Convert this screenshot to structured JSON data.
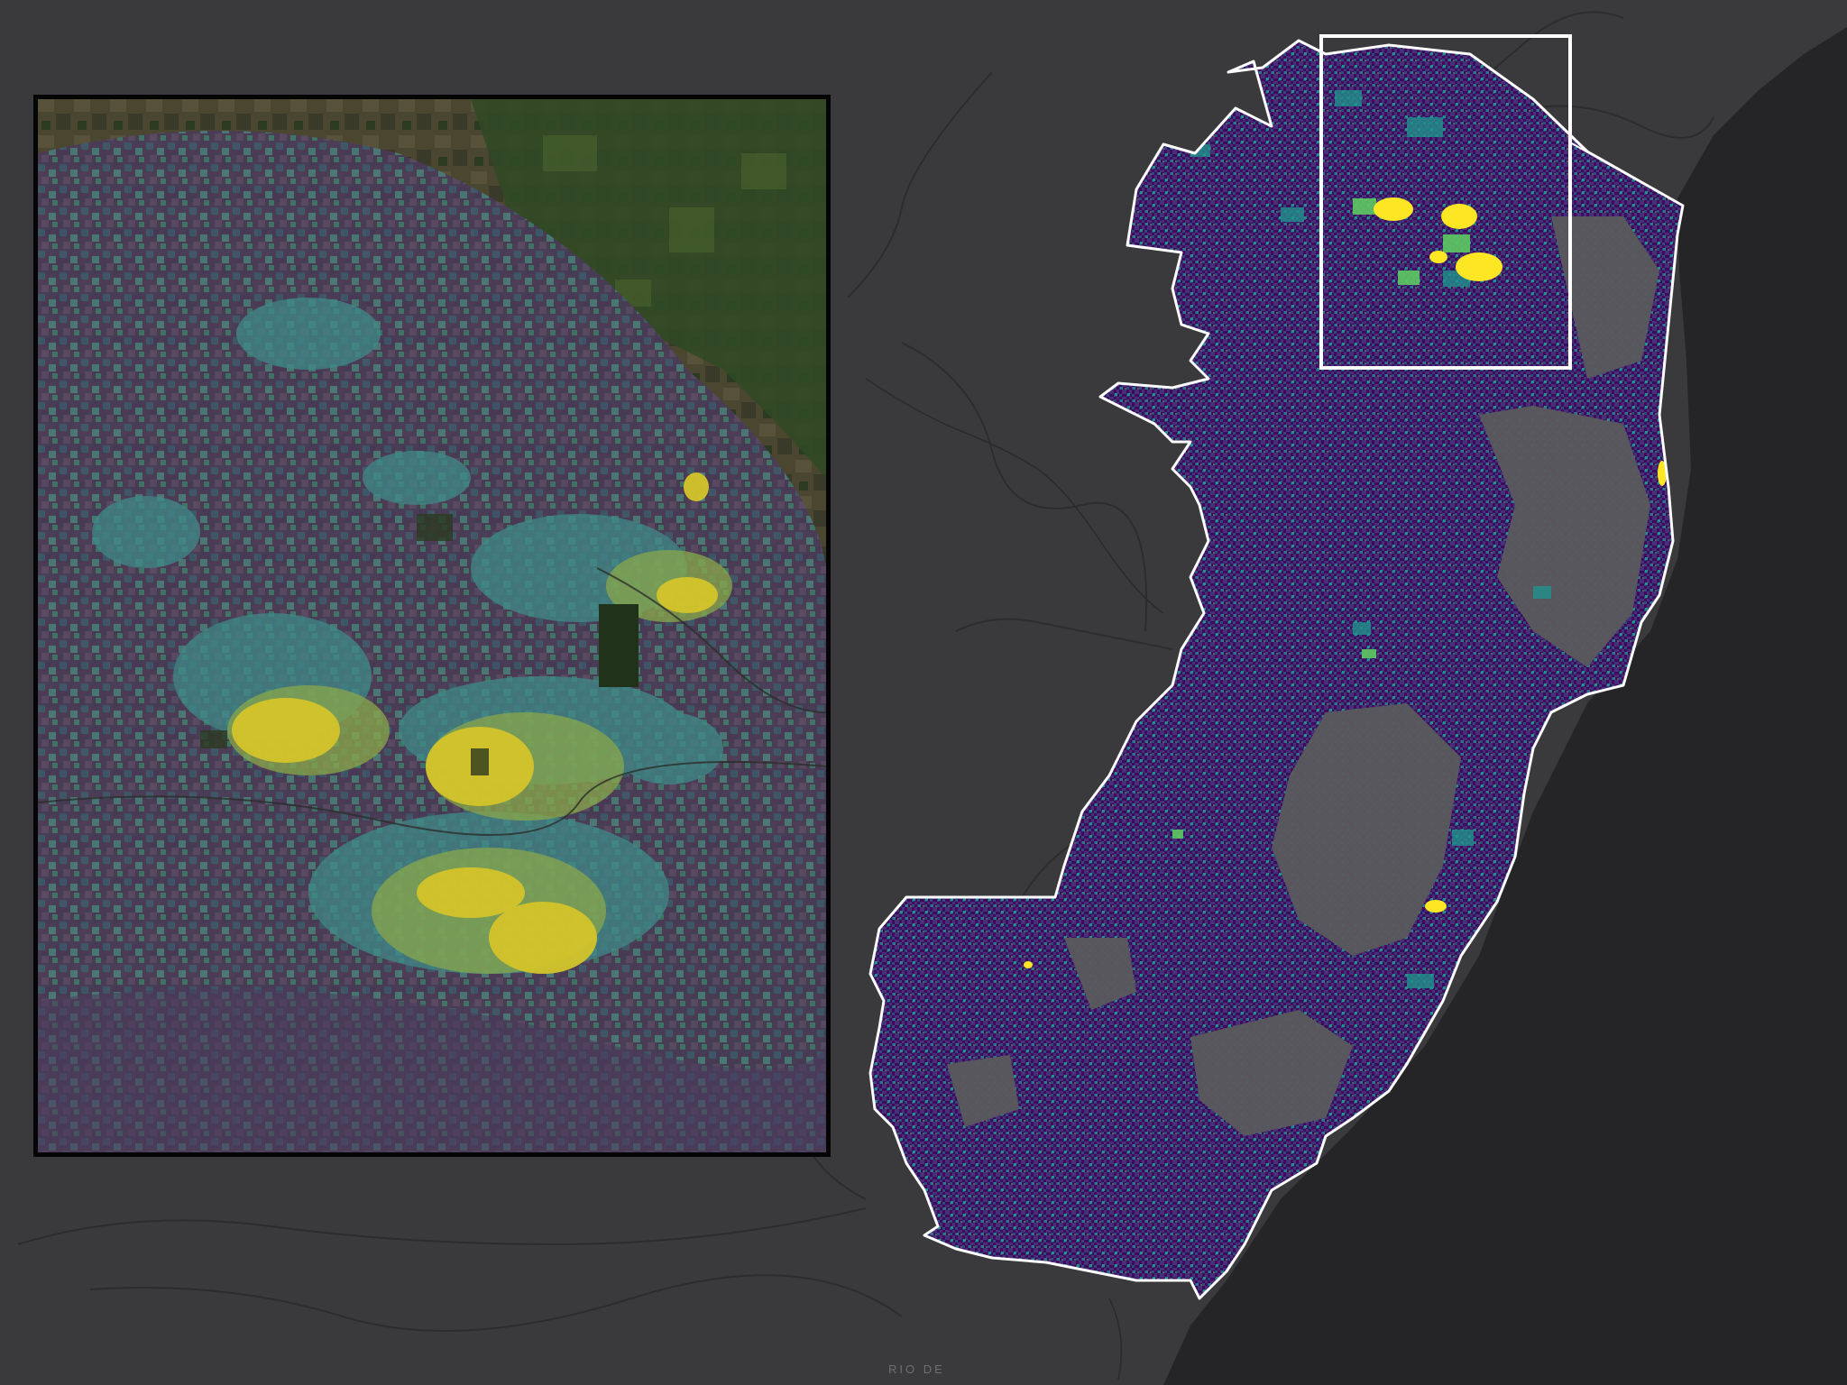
{
  "map": {
    "place_label": "RIO DE",
    "colors": {
      "land": "#3a3a3c",
      "ocean": "#252528",
      "boundary": "#ffffff",
      "nodata_gray": "#5a5a5c",
      "ramp": [
        "#3f0a5c",
        "#46307a",
        "#2f6a8e",
        "#21918c",
        "#5ec962",
        "#d4e21a",
        "#fde725"
      ]
    },
    "layers": {
      "basemap": "dark-gray-canvas",
      "overlay": "viridis-classified-raster",
      "inset_background": "satellite-imagery"
    }
  }
}
